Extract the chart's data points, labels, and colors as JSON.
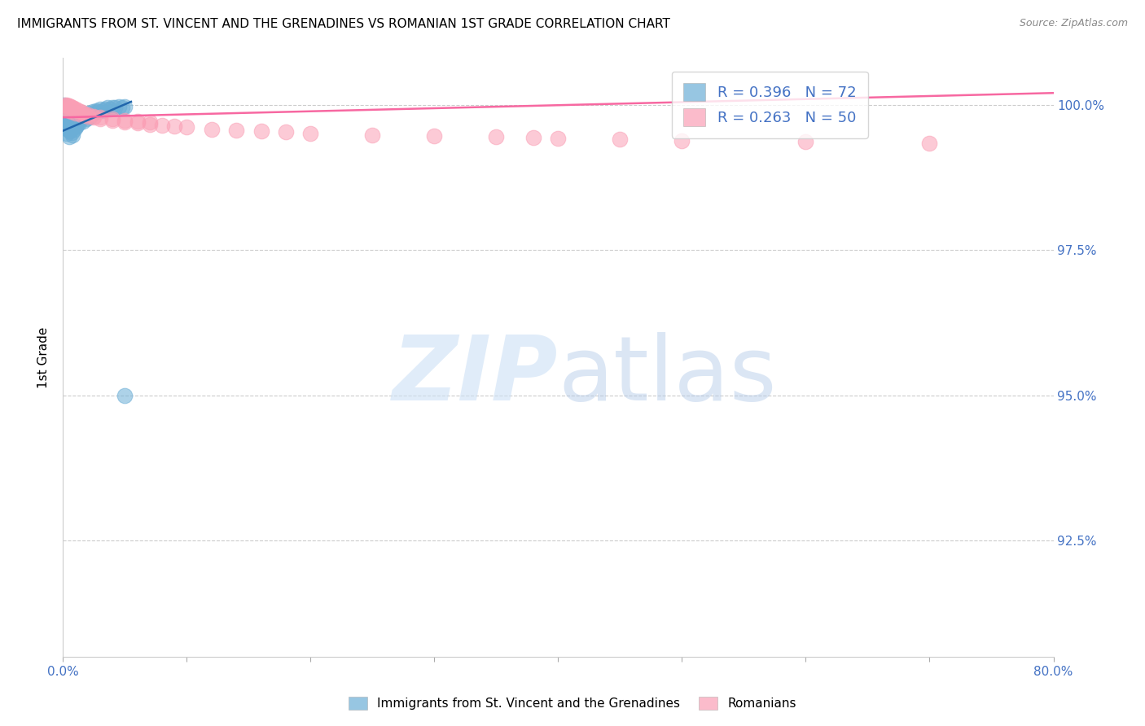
{
  "title": "IMMIGRANTS FROM ST. VINCENT AND THE GRENADINES VS ROMANIAN 1ST GRADE CORRELATION CHART",
  "source": "Source: ZipAtlas.com",
  "ylabel": "1st Grade",
  "y_ticks": [
    0.925,
    0.95,
    0.975,
    1.0
  ],
  "y_tick_labels": [
    "92.5%",
    "95.0%",
    "97.5%",
    "100.0%"
  ],
  "x_range": [
    0.0,
    0.8
  ],
  "y_range": [
    0.905,
    1.008
  ],
  "legend1_label": "R = 0.396   N = 72",
  "legend2_label": "R = 0.263   N = 50",
  "color_blue": "#6baed6",
  "color_pink": "#fa9fb5",
  "color_blue_line": "#2166ac",
  "color_pink_line": "#f768a1",
  "blue_x": [
    0.0005,
    0.0008,
    0.001,
    0.001,
    0.001,
    0.0012,
    0.0013,
    0.0015,
    0.0015,
    0.002,
    0.002,
    0.002,
    0.0022,
    0.0025,
    0.003,
    0.003,
    0.003,
    0.003,
    0.0032,
    0.0035,
    0.004,
    0.004,
    0.004,
    0.0042,
    0.0045,
    0.005,
    0.005,
    0.005,
    0.005,
    0.006,
    0.006,
    0.006,
    0.0065,
    0.007,
    0.007,
    0.007,
    0.008,
    0.008,
    0.008,
    0.009,
    0.009,
    0.01,
    0.01,
    0.011,
    0.011,
    0.012,
    0.013,
    0.014,
    0.015,
    0.016,
    0.017,
    0.018,
    0.019,
    0.02,
    0.021,
    0.022,
    0.024,
    0.025,
    0.027,
    0.028,
    0.03,
    0.032,
    0.034,
    0.036,
    0.038,
    0.04,
    0.042,
    0.045,
    0.048,
    0.05,
    0.0006,
    0.05
  ],
  "blue_y": [
    0.999,
    0.9985,
    0.9995,
    0.9988,
    0.997,
    0.998,
    0.9975,
    0.9992,
    0.9968,
    0.9985,
    0.9978,
    0.996,
    0.9972,
    0.9965,
    0.9988,
    0.9975,
    0.9962,
    0.995,
    0.9968,
    0.9978,
    0.9982,
    0.997,
    0.9958,
    0.9975,
    0.9965,
    0.9988,
    0.9975,
    0.996,
    0.9945,
    0.9978,
    0.9968,
    0.9955,
    0.9972,
    0.998,
    0.9968,
    0.9952,
    0.9975,
    0.9962,
    0.9948,
    0.997,
    0.9958,
    0.9975,
    0.9962,
    0.9978,
    0.9965,
    0.9972,
    0.9968,
    0.9975,
    0.998,
    0.9972,
    0.9978,
    0.9982,
    0.9975,
    0.9985,
    0.9978,
    0.998,
    0.9988,
    0.9985,
    0.999,
    0.9988,
    0.9992,
    0.999,
    0.9992,
    0.9995,
    0.9993,
    0.9995,
    0.9995,
    0.9997,
    0.9995,
    0.9997,
    1.0,
    0.95
  ],
  "pink_x": [
    0.002,
    0.003,
    0.004,
    0.005,
    0.006,
    0.007,
    0.008,
    0.009,
    0.01,
    0.012,
    0.014,
    0.016,
    0.018,
    0.02,
    0.025,
    0.03,
    0.04,
    0.05,
    0.06,
    0.07,
    0.002,
    0.003,
    0.005,
    0.007,
    0.01,
    0.015,
    0.02,
    0.025,
    0.03,
    0.04,
    0.05,
    0.06,
    0.07,
    0.08,
    0.09,
    0.1,
    0.12,
    0.14,
    0.16,
    0.18,
    0.2,
    0.25,
    0.3,
    0.35,
    0.38,
    0.4,
    0.45,
    0.5,
    0.6,
    0.7
  ],
  "pink_y": [
    1.0,
    1.0,
    0.9998,
    0.9998,
    0.9996,
    0.9995,
    0.9995,
    0.9993,
    0.9992,
    0.999,
    0.9988,
    0.9985,
    0.9983,
    0.9982,
    0.998,
    0.9978,
    0.9975,
    0.9973,
    0.9972,
    0.997,
    0.9995,
    0.9993,
    0.999,
    0.9988,
    0.9985,
    0.9982,
    0.998,
    0.9978,
    0.9976,
    0.9973,
    0.997,
    0.9968,
    0.9966,
    0.9965,
    0.9963,
    0.9961,
    0.9958,
    0.9956,
    0.9955,
    0.9953,
    0.995,
    0.9948,
    0.9946,
    0.9945,
    0.9943,
    0.9942,
    0.994,
    0.9938,
    0.9936,
    0.9934
  ],
  "blue_line_x": [
    0.0,
    0.055
  ],
  "blue_line_y": [
    0.9955,
    1.0005
  ],
  "pink_line_x": [
    0.0,
    0.8
  ],
  "pink_line_y": [
    0.9978,
    1.002
  ]
}
